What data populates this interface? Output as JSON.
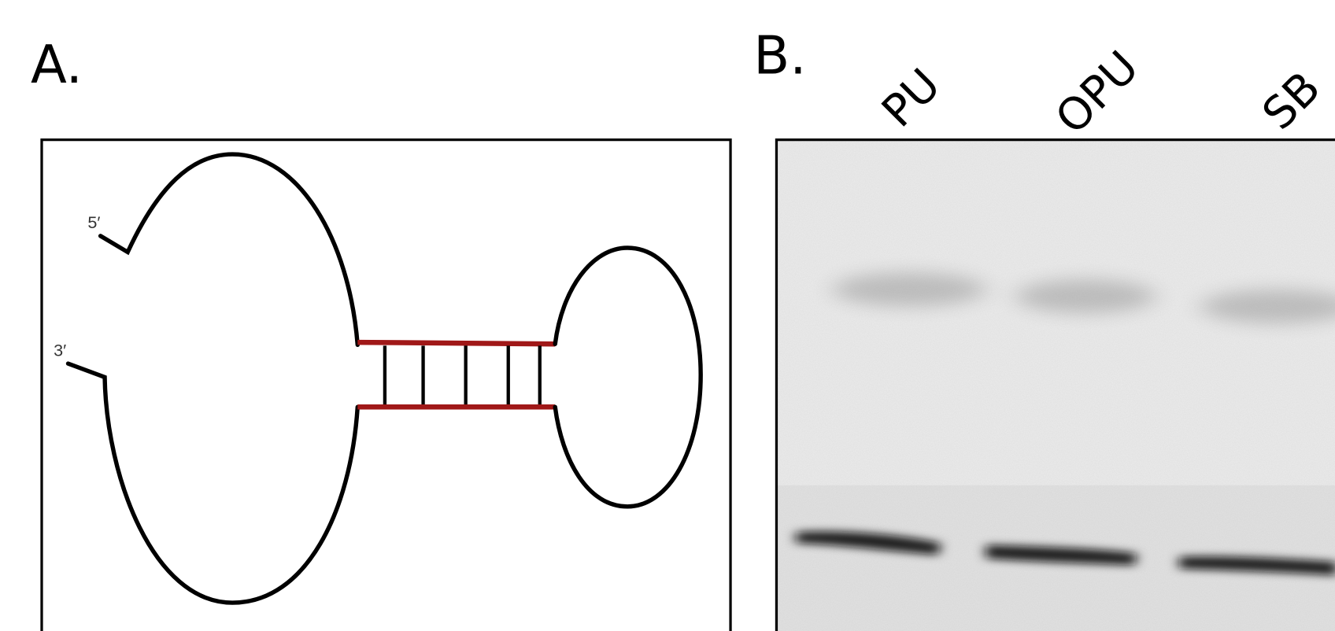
{
  "panel_a": {
    "label": "A.",
    "five_prime": "5′",
    "three_prime": "3′"
  },
  "panel_b": {
    "label": "B.",
    "lanes": [
      "PU",
      "OPU",
      "SB"
    ]
  }
}
